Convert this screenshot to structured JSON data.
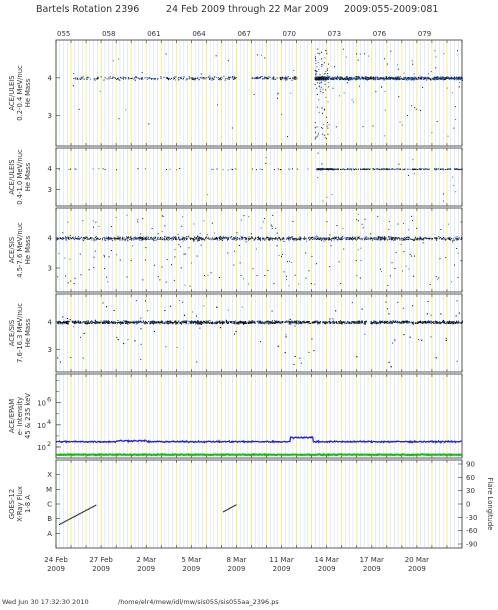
{
  "header": {
    "left": "Bartels Rotation 2396",
    "middle": "24 Feb 2009 through 22 Mar 2009",
    "right": "2009:055-2009:081"
  },
  "doy_labels": [
    "055",
    "058",
    "061",
    "064",
    "067",
    "070",
    "073",
    "076",
    "079"
  ],
  "x_labels": [
    {
      "day": "24 Feb",
      "year": "2009"
    },
    {
      "day": "27 Feb",
      "year": "2009"
    },
    {
      "day": "2 Mar",
      "year": "2009"
    },
    {
      "day": "5 Mar",
      "year": "2009"
    },
    {
      "day": "8 Mar",
      "year": "2009"
    },
    {
      "day": "11 Mar",
      "year": "2009"
    },
    {
      "day": "14 Mar",
      "year": "2009"
    },
    {
      "day": "17 Mar",
      "year": "2009"
    },
    {
      "day": "20 Mar",
      "year": "2009"
    }
  ],
  "footer": {
    "timestamp": "Wed Jun 30 17:32:30 2010",
    "path": "/home/elr4/mew/idl/mw/sis055/sis055aa_2396.ps"
  },
  "colors": {
    "grid_yellow": "#f2ec7a",
    "grid_blue": "#c6d9f0",
    "scatter_black": "#111111",
    "scatter_blue": "#2a5fd0",
    "epam_blue": "#2222cc",
    "epam_green": "#11bb11",
    "xray_black": "#222222"
  },
  "chart_data": [
    {
      "type": "scatter",
      "ylabel": [
        "ACE/ULEIS",
        "0.2-0.4 MeV/nuc",
        "He Mass"
      ],
      "yticks": [
        "4",
        "3"
      ],
      "x_range_doy": [
        55,
        82
      ],
      "note": "He mass histogram-style scatter, dense cluster near mass 4 around day 072-073"
    },
    {
      "type": "scatter",
      "ylabel": [
        "ACE/ULEIS",
        "0.4-1.0 MeV/nuc",
        "He Mass"
      ],
      "yticks": [
        "4",
        "3"
      ],
      "x_range_doy": [
        55,
        82
      ]
    },
    {
      "type": "scatter",
      "ylabel": [
        "ACE/SIS",
        "4.5-7.6 MeV/nuc",
        "He Mass"
      ],
      "yticks": [
        "4",
        "3"
      ],
      "x_range_doy": [
        55,
        82
      ]
    },
    {
      "type": "scatter",
      "ylabel": [
        "ACE/SIS",
        "7.6-16.3 MeV/nuc",
        "He Mass"
      ],
      "yticks": [
        "4",
        "3"
      ],
      "x_range_doy": [
        55,
        82
      ]
    },
    {
      "type": "line",
      "ylabel": [
        "ACE/EPAM",
        "e- Intensity",
        "45 & 235 keV"
      ],
      "yticks": [
        "10^6",
        "10^4",
        "10^2"
      ],
      "scale": "log",
      "series": [
        {
          "name": "45 keV",
          "approx_value": 300,
          "color": "#2222cc"
        },
        {
          "name": "235 keV",
          "approx_value": 20,
          "color": "#11bb11"
        }
      ]
    },
    {
      "type": "line",
      "ylabel": [
        "GOES-12",
        "X-Ray Flux",
        "1-8 A"
      ],
      "yticks_left": [
        "X",
        "M",
        "C",
        "B",
        "A"
      ],
      "ylabel_right": "Flare Longitude",
      "yticks_right": [
        "90",
        "60",
        "30",
        "0",
        "-30",
        "-60",
        "-90"
      ],
      "segments": [
        {
          "x_start_doy": 55.2,
          "x_end_doy": 57.5,
          "level": "C-B"
        },
        {
          "x_start_doy": 66.1,
          "x_end_doy": 67.0,
          "level": "C"
        }
      ]
    }
  ]
}
